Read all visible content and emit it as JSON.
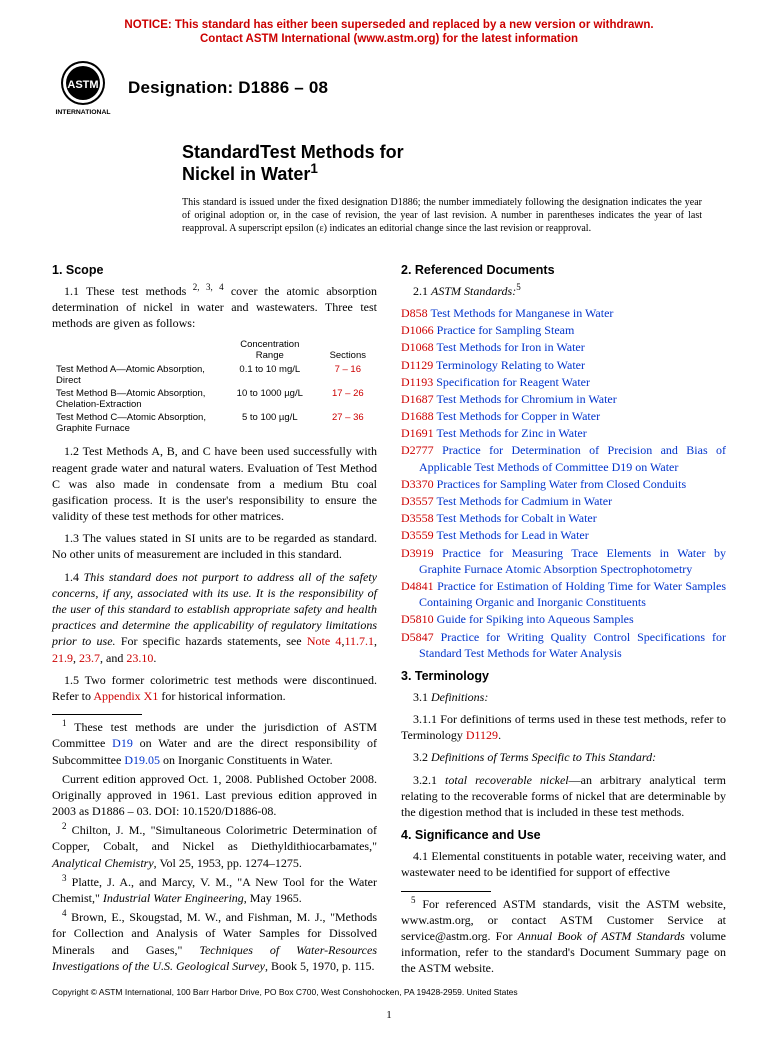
{
  "notice_line1": "NOTICE: This standard has either been superseded and replaced by a new version or withdrawn.",
  "notice_line2": "Contact ASTM International (www.astm.org) for the latest information",
  "logo_text_top": "ASTM",
  "logo_text_bottom": "INTERNATIONAL",
  "designation_label": "Designation: D1886 – 08",
  "title_line1": "StandardTest Methods for",
  "title_line2": "Nickel in Water",
  "title_sup": "1",
  "issue_note": "This standard is issued under the fixed designation D1886; the number immediately following the designation indicates the year of original adoption or, in the case of revision, the year of last revision. A number in parentheses indicates the year of last reapproval. A superscript epsilon (ε) indicates an editorial change since the last revision or reapproval.",
  "sec1_head": "1. Scope",
  "sec1_1a": "1.1 These test methods",
  "sec1_1_sup": " 2, 3, 4",
  "sec1_1b": " cover the atomic absorption determination of nickel in water and wastewaters. Three test methods are given as follows:",
  "tbl_head_range": "Concentration\nRange",
  "tbl_head_sections": "Sections",
  "tbl_rows": [
    {
      "method": "Test Method A—Atomic Absorption, Direct",
      "range": "0.1 to 10 mg/L",
      "sections": "7 – 16"
    },
    {
      "method": "Test Method B—Atomic Absorption, Chelation-Extraction",
      "range": "10 to 1000 µg/L",
      "sections": "17 – 26"
    },
    {
      "method": "Test Method C—Atomic Absorption, Graphite Furnace",
      "range": "5 to 100 µg/L",
      "sections": "27 – 36"
    }
  ],
  "sec1_2": "1.2 Test Methods A, B, and C have been used successfully with reagent grade water and natural waters. Evaluation of Test Method C was also made in condensate from a medium Btu coal gasification process. It is the user's responsibility to ensure the validity of these test methods for other matrices.",
  "sec1_3": "1.3 The values stated in SI units are to be regarded as standard. No other units of measurement are included in this standard.",
  "sec1_4a": "1.4 ",
  "sec1_4_ital": "This standard does not purport to address all of the safety concerns, if any, associated with its use. It is the responsibility of the user of this standard to establish appropriate safety and health practices and determine the applicability of regulatory limitations prior to use.",
  "sec1_4b": " For specific hazards statements, see ",
  "sec1_4_links": [
    "Note 4",
    "11.7.1",
    "21.9",
    "23.7",
    "23.10"
  ],
  "sec1_5a": "1.5 Two former colorimetric test methods were discontinued. Refer to ",
  "sec1_5_link": "Appendix X1",
  "sec1_5b": " for historical information.",
  "fn1a": " These test methods are under the jurisdiction of ASTM Committee ",
  "fn1_link1": "D19",
  "fn1b": " on Water and are the direct responsibility of Subcommittee ",
  "fn1_link2": "D19.05",
  "fn1c": " on Inorganic Constituents in Water.",
  "fn1_para2": "Current edition approved Oct. 1, 2008. Published October 2008. Originally approved in 1961. Last previous edition approved in 2003 as D1886 – 03. DOI: 10.1520/D1886-08.",
  "fn2": " Chilton, J. M., \"Simultaneous Colorimetric Determination of Copper, Cobalt, and Nickel as Diethyldithiocarbamates,\" ",
  "fn2_ital": "Analytical Chemistry",
  "fn2b": ", Vol 25, 1953, pp. 1274–1275.",
  "fn3": " Platte, J. A., and Marcy, V. M., \"A New Tool for the Water Chemist,\" ",
  "fn3_ital": "Industrial Water Engineering",
  "fn3b": ", May 1965.",
  "fn4": " Brown, E., Skougstad, M. W., and Fishman, M. J., \"Methods for Collection and Analysis of Water Samples for Dissolved Minerals and Gases,\" ",
  "fn4_ital": "Techniques of Water-Resources Investigations of the U.S. Geological Survey",
  "fn4b": ", Book 5, 1970, p. 115.",
  "sec2_head": "2. Referenced Documents",
  "sec2_1": "2.1 ",
  "sec2_1_ital": "ASTM Standards:",
  "sec2_1_sup": "5",
  "refs": [
    {
      "code": "D858",
      "title": "Test Methods for Manganese in Water"
    },
    {
      "code": "D1066",
      "title": "Practice for Sampling Steam"
    },
    {
      "code": "D1068",
      "title": "Test Methods for Iron in Water"
    },
    {
      "code": "D1129",
      "title": "Terminology Relating to Water"
    },
    {
      "code": "D1193",
      "title": "Specification for Reagent Water"
    },
    {
      "code": "D1687",
      "title": "Test Methods for Chromium in Water"
    },
    {
      "code": "D1688",
      "title": "Test Methods for Copper in Water"
    },
    {
      "code": "D1691",
      "title": "Test Methods for Zinc in Water"
    },
    {
      "code": "D2777",
      "title": "Practice for Determination of Precision and Bias of Applicable Test Methods of Committee D19 on Water"
    },
    {
      "code": "D3370",
      "title": "Practices for Sampling Water from Closed Conduits"
    },
    {
      "code": "D3557",
      "title": "Test Methods for Cadmium in Water"
    },
    {
      "code": "D3558",
      "title": "Test Methods for Cobalt in Water"
    },
    {
      "code": "D3559",
      "title": "Test Methods for Lead in Water"
    },
    {
      "code": "D3919",
      "title": "Practice for Measuring Trace Elements in Water by Graphite Furnace Atomic Absorption Spectrophotometry"
    },
    {
      "code": "D4841",
      "title": "Practice for Estimation of Holding Time for Water Samples Containing Organic and Inorganic Constituents"
    },
    {
      "code": "D5810",
      "title": "Guide for Spiking into Aqueous Samples"
    },
    {
      "code": "D5847",
      "title": "Practice for Writing Quality Control Specifications for Standard Test Methods for Water Analysis"
    }
  ],
  "sec3_head": "3. Terminology",
  "sec3_1": "3.1 ",
  "sec3_1_ital": "Definitions:",
  "sec3_1_1a": "3.1.1 For definitions of terms used in these test methods, refer to Terminology ",
  "sec3_1_1_link": "D1129",
  "sec3_1_1b": ".",
  "sec3_2": "3.2 ",
  "sec3_2_ital": "Definitions of Terms Specific to This Standard:",
  "sec3_2_1a": "3.2.1 ",
  "sec3_2_1_term": "total recoverable nickel",
  "sec3_2_1b": "—an arbitrary analytical term relating to the recoverable forms of nickel that are determinable by the digestion method that is included in these test methods.",
  "sec4_head": "4. Significance and Use",
  "sec4_1": "4.1 Elemental constituents in potable water, receiving water, and wastewater need to be identified for support of effective",
  "fn5a": " For referenced ASTM standards, visit the ASTM website, www.astm.org, or contact ASTM Customer Service at service@astm.org. For ",
  "fn5_ital": "Annual Book of ASTM Standards",
  "fn5b": " volume information, refer to the standard's Document Summary page on the ASTM website.",
  "copyright": "Copyright © ASTM International, 100 Barr Harbor Drive, PO Box C700, West Conshohocken, PA 19428-2959. United States",
  "pagenum": "1"
}
